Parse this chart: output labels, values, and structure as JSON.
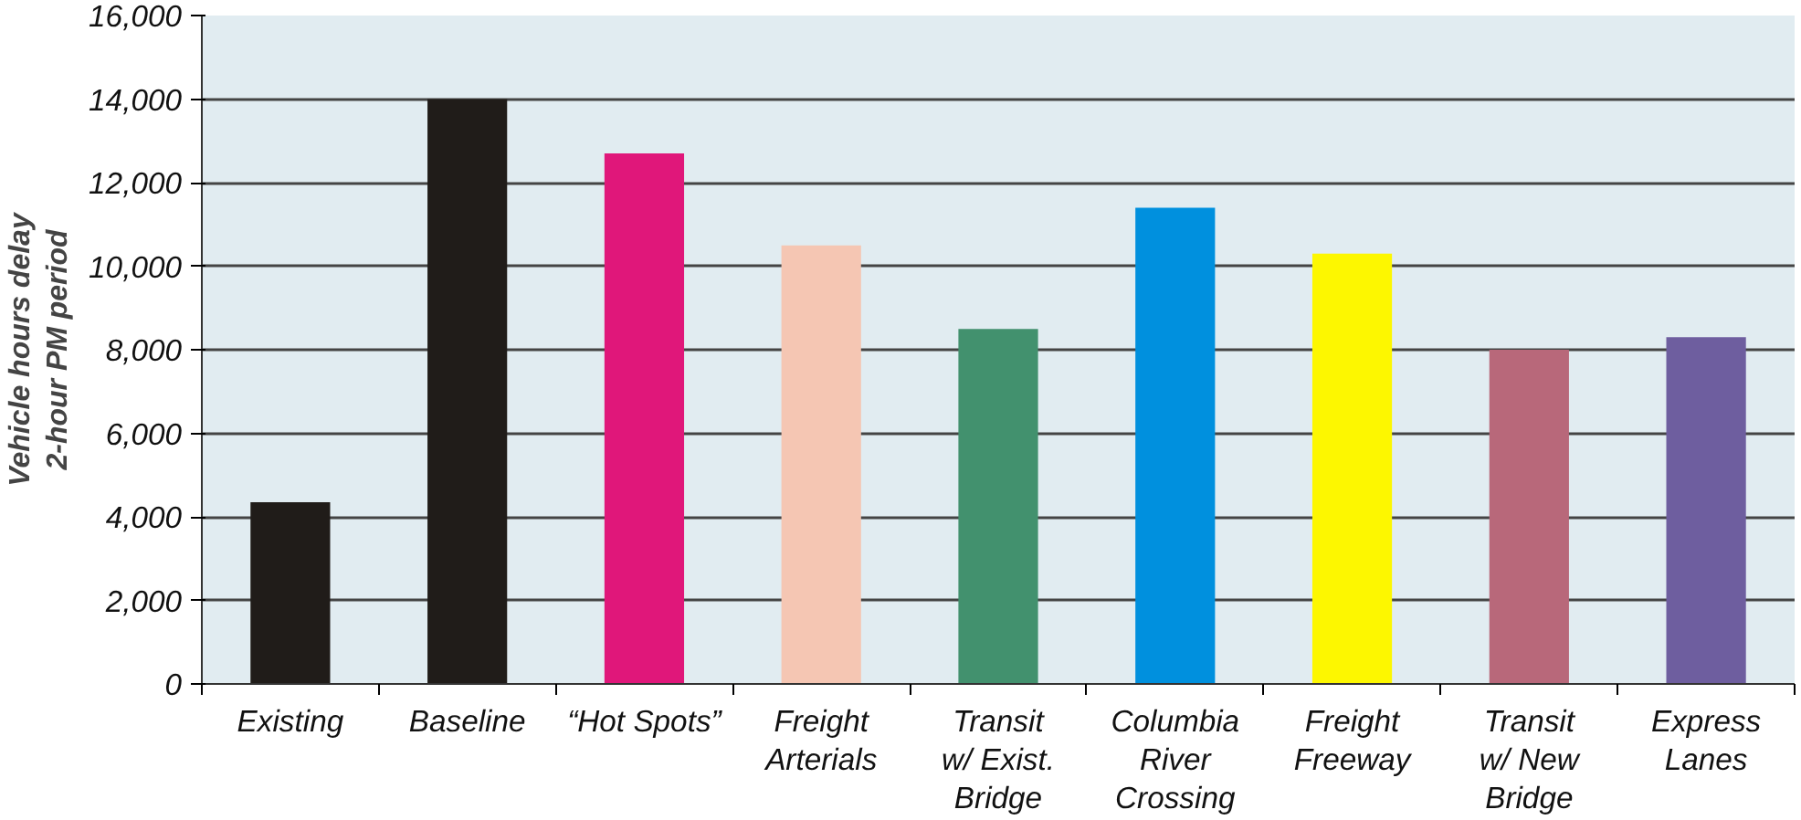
{
  "chart_data": {
    "type": "bar",
    "ylabel": "Vehicle hours delay\n2-hour PM period",
    "categories": [
      "Existing",
      "Baseline",
      "“Hot Spots”",
      "Freight\nArterials",
      "Transit\nw/ Exist.\nBridge",
      "Columbia\nRiver\nCrossing",
      "Freight\nFreeway",
      "Transit\nw/ New\nBridge",
      "Express\nLanes"
    ],
    "values": [
      4350,
      14000,
      12700,
      10500,
      8500,
      11400,
      10300,
      8000,
      8300
    ],
    "colors": [
      "#201c19",
      "#201c19",
      "#e0177a",
      "#f5c6b3",
      "#42916e",
      "#0090de",
      "#fdf700",
      "#b8687a",
      "#6e5e9f"
    ],
    "ylim": [
      0,
      16000
    ],
    "yticks": [
      {
        "value": 0,
        "label": "0"
      },
      {
        "value": 2000,
        "label": "2,000"
      },
      {
        "value": 4000,
        "label": "4,000"
      },
      {
        "value": 6000,
        "label": "6,000"
      },
      {
        "value": 8000,
        "label": "8,000"
      },
      {
        "value": 10000,
        "label": "10,000"
      },
      {
        "value": 12000,
        "label": "12,000"
      },
      {
        "value": 14000,
        "label": "14,000"
      },
      {
        "value": 16000,
        "label": "16,000"
      }
    ],
    "grid": "y"
  }
}
